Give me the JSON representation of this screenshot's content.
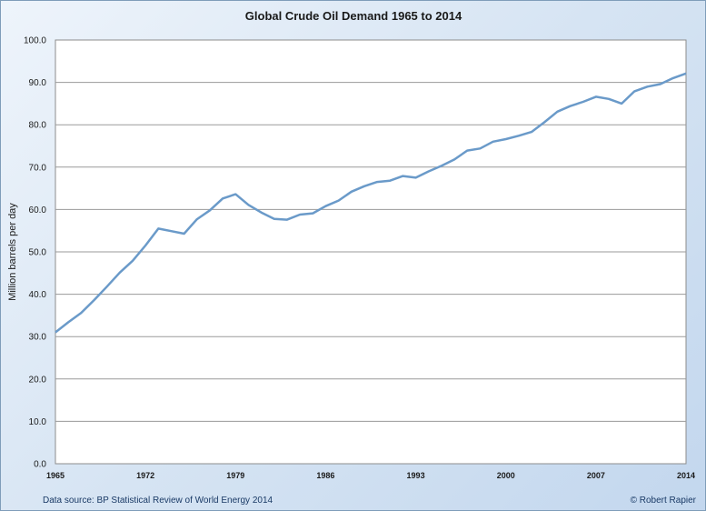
{
  "chart_data": {
    "type": "line",
    "title": "Global Crude Oil Demand 1965 to 2014",
    "xlabel": "",
    "ylabel": "Million barrels per day",
    "xlim": [
      1965,
      2014
    ],
    "ylim": [
      0,
      100
    ],
    "y_ticks": [
      "0.0",
      "10.0",
      "20.0",
      "30.0",
      "40.0",
      "50.0",
      "60.0",
      "70.0",
      "80.0",
      "90.0",
      "100.0"
    ],
    "x_ticks": [
      "1965",
      "1972",
      "1979",
      "1986",
      "1993",
      "2000",
      "2007",
      "2014"
    ],
    "grid": true,
    "legend": "none",
    "line_color": "#6a9ac9",
    "series": [
      {
        "x": [
          1965,
          1966,
          1967,
          1968,
          1969,
          1970,
          1971,
          1972,
          1973,
          1974,
          1975,
          1976,
          1977,
          1978,
          1979,
          1980,
          1981,
          1982,
          1983,
          1984,
          1985,
          1986,
          1987,
          1988,
          1989,
          1990,
          1991,
          1992,
          1993,
          1994,
          1995,
          1996,
          1997,
          1998,
          1999,
          2000,
          2001,
          2002,
          2003,
          2004,
          2005,
          2006,
          2007,
          2008,
          2009,
          2010,
          2011,
          2012,
          2013,
          2014
        ],
        "values": [
          31.0,
          33.4,
          35.6,
          38.6,
          41.8,
          45.1,
          47.9,
          51.5,
          55.5,
          54.9,
          54.3,
          57.7,
          59.8,
          62.6,
          63.6,
          61.1,
          59.3,
          57.8,
          57.6,
          58.8,
          59.1,
          60.8,
          62.1,
          64.2,
          65.5,
          66.5,
          66.8,
          67.9,
          67.5,
          69.0,
          70.3,
          71.8,
          73.9,
          74.4,
          76.0,
          76.6,
          77.4,
          78.3,
          80.6,
          83.1,
          84.4,
          85.4,
          86.6,
          86.1,
          85.0,
          87.9,
          89.0,
          89.6,
          91.0,
          92.1
        ]
      }
    ]
  },
  "footer": {
    "source": "Data source: BP Statistical Review of World Energy 2014",
    "credit": "© Robert Rapier"
  }
}
